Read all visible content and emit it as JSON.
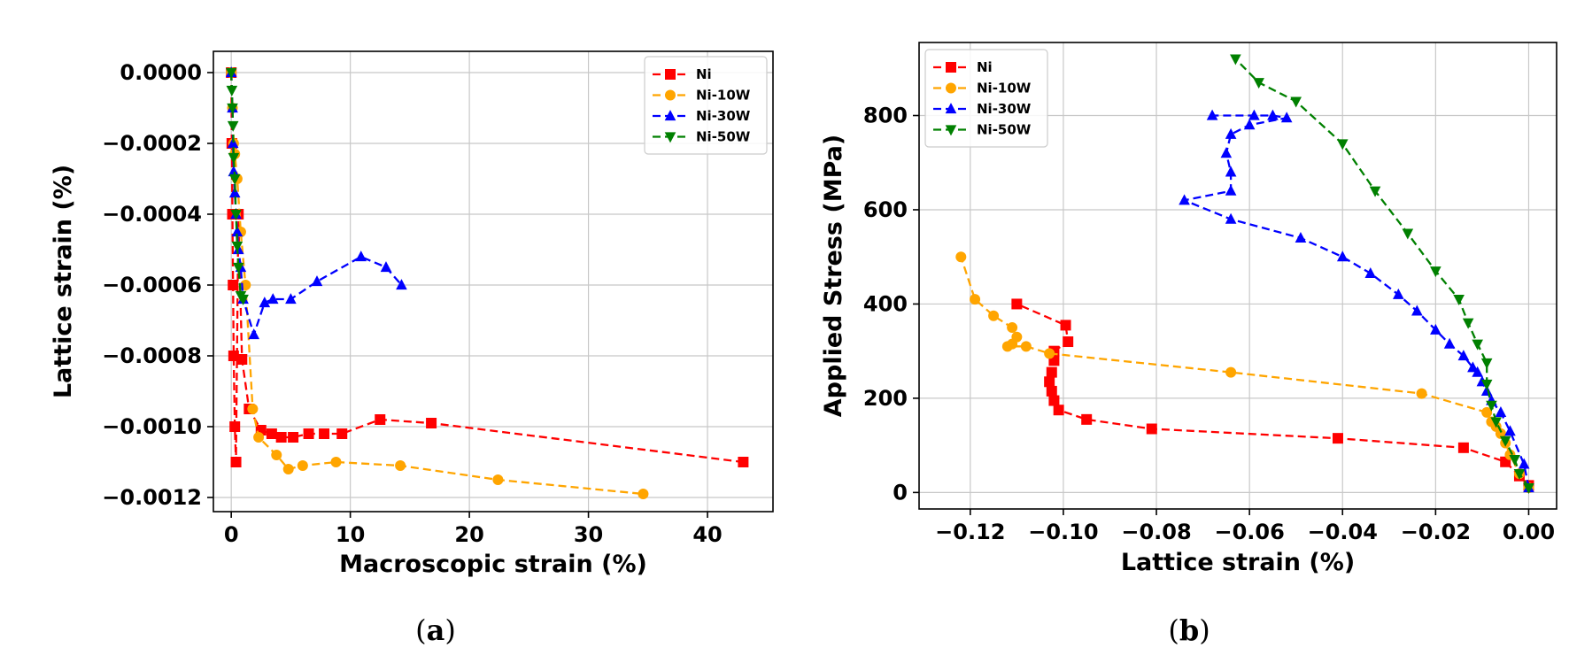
{
  "chart_data": [
    {
      "id": "a",
      "type": "line",
      "caption_letter": "a",
      "xlabel": "Macroscopic strain (%)",
      "ylabel": "Lattice strain (%)",
      "xlim": [
        -1.5,
        45.5
      ],
      "ylim": [
        -0.00124,
        6e-05
      ],
      "xticks": [
        0,
        10,
        20,
        30,
        40
      ],
      "xtick_labels": [
        "0",
        "10",
        "20",
        "30",
        "40"
      ],
      "yticks": [
        0,
        -0.0002,
        -0.0004,
        -0.0006,
        -0.0008,
        -0.001,
        -0.0012
      ],
      "ytick_labels": [
        "0.0000",
        "−0.0002",
        "−0.0004",
        "−0.0006",
        "−0.0008",
        "−0.0010",
        "−0.0012"
      ],
      "grid": true,
      "legend_position": "top-right",
      "series": [
        {
          "name": "Ni",
          "color": "#ff0000",
          "marker": "square",
          "x": [
            0,
            0.05,
            0.1,
            0.15,
            0.2,
            0.3,
            0.4,
            0.6,
            0.9,
            1.5,
            2.5,
            3.4,
            4.2,
            5.2,
            6.5,
            7.8,
            9.3,
            12.5,
            16.8,
            43
          ],
          "y": [
            0,
            -0.0002,
            -0.0004,
            -0.0006,
            -0.0008,
            -0.001,
            -0.0011,
            -0.0004,
            -0.00081,
            -0.00095,
            -0.00101,
            -0.00102,
            -0.00103,
            -0.00103,
            -0.00102,
            -0.00102,
            -0.00102,
            -0.00098,
            -0.00099,
            -0.0011
          ]
        },
        {
          "name": "Ni-10W",
          "color": "#ffa500",
          "marker": "circle",
          "x": [
            0,
            0.1,
            0.2,
            0.3,
            0.5,
            0.8,
            1.2,
            1.8,
            2.3,
            3.8,
            4.8,
            6.0,
            8.8,
            14.2,
            22.4,
            34.6
          ],
          "y": [
            0,
            -0.0001,
            -0.0002,
            -0.00023,
            -0.0003,
            -0.00045,
            -0.0006,
            -0.00095,
            -0.00103,
            -0.00108,
            -0.00112,
            -0.00111,
            -0.0011,
            -0.00111,
            -0.00115,
            -0.00119
          ]
        },
        {
          "name": "Ni-30W",
          "color": "#0000ff",
          "marker": "triangle-up",
          "x": [
            0,
            0.1,
            0.15,
            0.2,
            0.3,
            0.4,
            0.5,
            0.6,
            0.8,
            1.0,
            1.9,
            2.8,
            3.5,
            5.0,
            7.2,
            10.9,
            13.0,
            14.3
          ],
          "y": [
            0,
            -0.0001,
            -0.0002,
            -0.00028,
            -0.00034,
            -0.0004,
            -0.00045,
            -0.0005,
            -0.00055,
            -0.00064,
            -0.00074,
            -0.00065,
            -0.00064,
            -0.00064,
            -0.00059,
            -0.00052,
            -0.00055,
            -0.0006
          ]
        },
        {
          "name": "Ni-50W",
          "color": "#008000",
          "marker": "triangle-down",
          "x": [
            0,
            0.05,
            0.1,
            0.15,
            0.2,
            0.3,
            0.4,
            0.5,
            0.6,
            0.8,
            1.0
          ],
          "y": [
            0,
            -5e-05,
            -0.0001,
            -0.00015,
            -0.00024,
            -0.0003,
            -0.0004,
            -0.00049,
            -0.00055,
            -0.00063,
            -0.00064
          ]
        }
      ]
    },
    {
      "id": "b",
      "type": "line",
      "caption_letter": "b",
      "xlabel": "Lattice strain (%)",
      "ylabel": "Applied Stress (MPa)",
      "xlim": [
        -0.131,
        0.006
      ],
      "ylim": [
        -35,
        955
      ],
      "xticks": [
        -0.12,
        -0.1,
        -0.08,
        -0.06,
        -0.04,
        -0.02,
        0
      ],
      "xtick_labels": [
        "−0.12",
        "−0.10",
        "−0.08",
        "−0.06",
        "−0.04",
        "−0.02",
        "0.00"
      ],
      "yticks": [
        0,
        200,
        400,
        600,
        800
      ],
      "ytick_labels": [
        "0",
        "200",
        "400",
        "600",
        "800"
      ],
      "grid": true,
      "legend_position": "top-left",
      "series": [
        {
          "name": "Ni",
          "color": "#ff0000",
          "marker": "square",
          "x": [
            0,
            -0.002,
            -0.005,
            -0.014,
            -0.041,
            -0.081,
            -0.095,
            -0.101,
            -0.102,
            -0.1025,
            -0.103,
            -0.1025,
            -0.102,
            -0.102,
            -0.099,
            -0.0995,
            -0.11
          ],
          "y": [
            15,
            35,
            65,
            95,
            115,
            135,
            155,
            175,
            195,
            215,
            235,
            255,
            280,
            300,
            320,
            355,
            400
          ]
        },
        {
          "name": "Ni-10W",
          "color": "#ffa500",
          "marker": "circle",
          "x": [
            0,
            -0.002,
            -0.004,
            -0.005,
            -0.006,
            -0.007,
            -0.008,
            -0.009,
            -0.023,
            -0.064,
            -0.103,
            -0.108,
            -0.112,
            -0.111,
            -0.11,
            -0.111,
            -0.115,
            -0.119,
            -0.122
          ],
          "y": [
            10,
            40,
            80,
            105,
            125,
            140,
            150,
            170,
            210,
            255,
            295,
            310,
            310,
            315,
            330,
            350,
            375,
            410,
            500
          ]
        },
        {
          "name": "Ni-30W",
          "color": "#0000ff",
          "marker": "triangle-up",
          "x": [
            0,
            -0.001,
            -0.004,
            -0.006,
            -0.008,
            -0.009,
            -0.01,
            -0.011,
            -0.012,
            -0.014,
            -0.017,
            -0.02,
            -0.024,
            -0.028,
            -0.034,
            -0.04,
            -0.049,
            -0.064,
            -0.074,
            -0.064,
            -0.064,
            -0.065,
            -0.064,
            -0.06,
            -0.052,
            -0.055,
            -0.059,
            -0.068
          ],
          "y": [
            10,
            60,
            130,
            170,
            195,
            215,
            235,
            255,
            265,
            290,
            315,
            345,
            385,
            420,
            465,
            500,
            540,
            580,
            620,
            640,
            680,
            720,
            760,
            780,
            795,
            800,
            800,
            800
          ]
        },
        {
          "name": "Ni-50W",
          "color": "#008000",
          "marker": "triangle-down",
          "x": [
            0,
            -0.002,
            -0.003,
            -0.005,
            -0.007,
            -0.008,
            -0.009,
            -0.009,
            -0.011,
            -0.013,
            -0.015,
            -0.02,
            -0.026,
            -0.033,
            -0.04,
            -0.05,
            -0.058,
            -0.063
          ],
          "y": [
            10,
            40,
            70,
            110,
            150,
            185,
            230,
            275,
            315,
            360,
            410,
            470,
            550,
            640,
            740,
            830,
            870,
            920
          ]
        }
      ]
    }
  ]
}
